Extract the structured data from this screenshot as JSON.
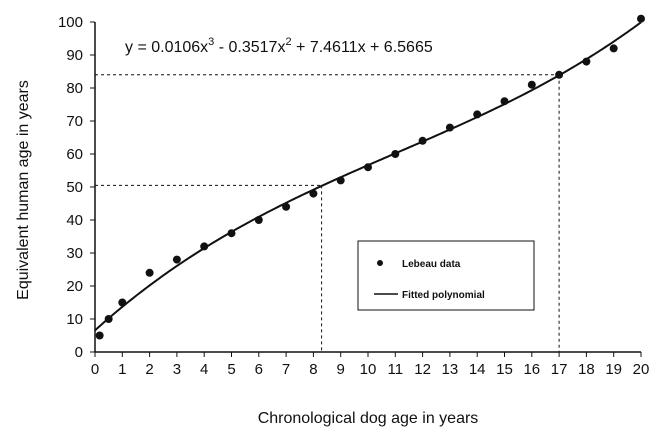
{
  "chart_data": {
    "type": "scatter",
    "title": "",
    "xlabel": "Chronological dog age in years",
    "ylabel": "Equivalent human age in years",
    "xlim": [
      0,
      20
    ],
    "ylim": [
      0,
      100
    ],
    "xticks": [
      0,
      1,
      2,
      3,
      4,
      5,
      6,
      7,
      8,
      9,
      10,
      11,
      12,
      13,
      14,
      15,
      16,
      17,
      18,
      19,
      20
    ],
    "yticks": [
      0,
      10,
      20,
      30,
      40,
      50,
      60,
      70,
      80,
      90,
      100
    ],
    "grid": false,
    "legend_position": "center-right",
    "equation": {
      "prefix": "y = 0.0106x",
      "exp1": "3",
      "mid1": " - 0.3517x",
      "exp2": "2",
      "suffix": " + 7.4611x + 6.5665"
    },
    "coefficients": {
      "a3": 0.0106,
      "a2": -0.3517,
      "a1": 7.4611,
      "a0": 6.5665
    },
    "series": [
      {
        "name": "Lebeau data",
        "kind": "points",
        "color": "#111111",
        "x": [
          0.17,
          0.5,
          1,
          2,
          3,
          4,
          5,
          6,
          7,
          8,
          9,
          10,
          11,
          12,
          13,
          14,
          15,
          16,
          17,
          18,
          19,
          20
        ],
        "y": [
          5,
          10,
          15,
          24,
          28,
          32,
          36,
          40,
          44,
          48,
          52,
          56,
          60,
          64,
          68,
          72,
          76,
          81,
          84,
          88,
          92,
          101
        ]
      },
      {
        "name": "Fitted polynomial",
        "kind": "curve",
        "color": "#111111",
        "x_range": [
          0,
          20
        ]
      }
    ],
    "reference_lines": [
      {
        "x": 8.3,
        "y": 50.5
      },
      {
        "x": 17,
        "y": 84
      }
    ]
  }
}
